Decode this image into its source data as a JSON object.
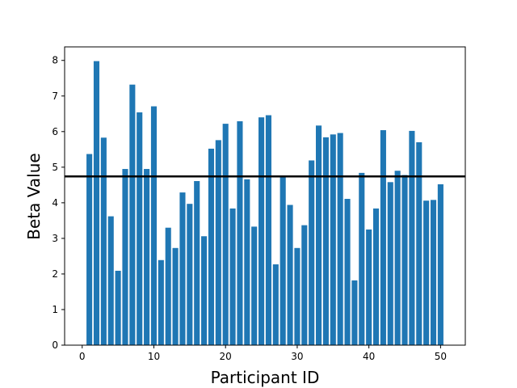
{
  "chart_data": {
    "type": "bar",
    "title": "",
    "xlabel": "Participant ID",
    "ylabel": "Beta Value",
    "x": [
      1,
      2,
      3,
      4,
      5,
      6,
      7,
      8,
      9,
      10,
      11,
      12,
      13,
      14,
      15,
      16,
      17,
      18,
      19,
      20,
      21,
      22,
      23,
      24,
      25,
      26,
      27,
      28,
      29,
      30,
      31,
      32,
      33,
      34,
      35,
      36,
      37,
      38,
      39,
      40,
      41,
      42,
      43,
      44,
      45,
      46,
      47,
      48,
      49,
      50
    ],
    "values": [
      5.37,
      7.98,
      5.83,
      3.62,
      2.09,
      4.95,
      7.32,
      6.54,
      4.95,
      6.71,
      2.39,
      3.3,
      2.73,
      4.29,
      3.97,
      4.61,
      3.06,
      5.52,
      5.76,
      6.22,
      3.84,
      6.29,
      4.66,
      3.33,
      6.4,
      6.46,
      2.27,
      4.72,
      3.94,
      2.73,
      3.37,
      5.19,
      6.17,
      5.84,
      5.92,
      5.96,
      4.11,
      1.82,
      4.84,
      3.25,
      3.84,
      6.04,
      4.58,
      4.9,
      4.78,
      6.02,
      5.7,
      4.06,
      4.08,
      4.52
    ],
    "reference_line": 4.74,
    "xlim": [
      -2.45,
      53.45
    ],
    "ylim": [
      0,
      8.38
    ],
    "xticks": [
      0,
      10,
      20,
      30,
      40,
      50
    ],
    "yticks": [
      0,
      1,
      2,
      3,
      4,
      5,
      6,
      7,
      8
    ],
    "grid": false,
    "bar_color": "#1f77b4",
    "line_color": "#000000"
  }
}
